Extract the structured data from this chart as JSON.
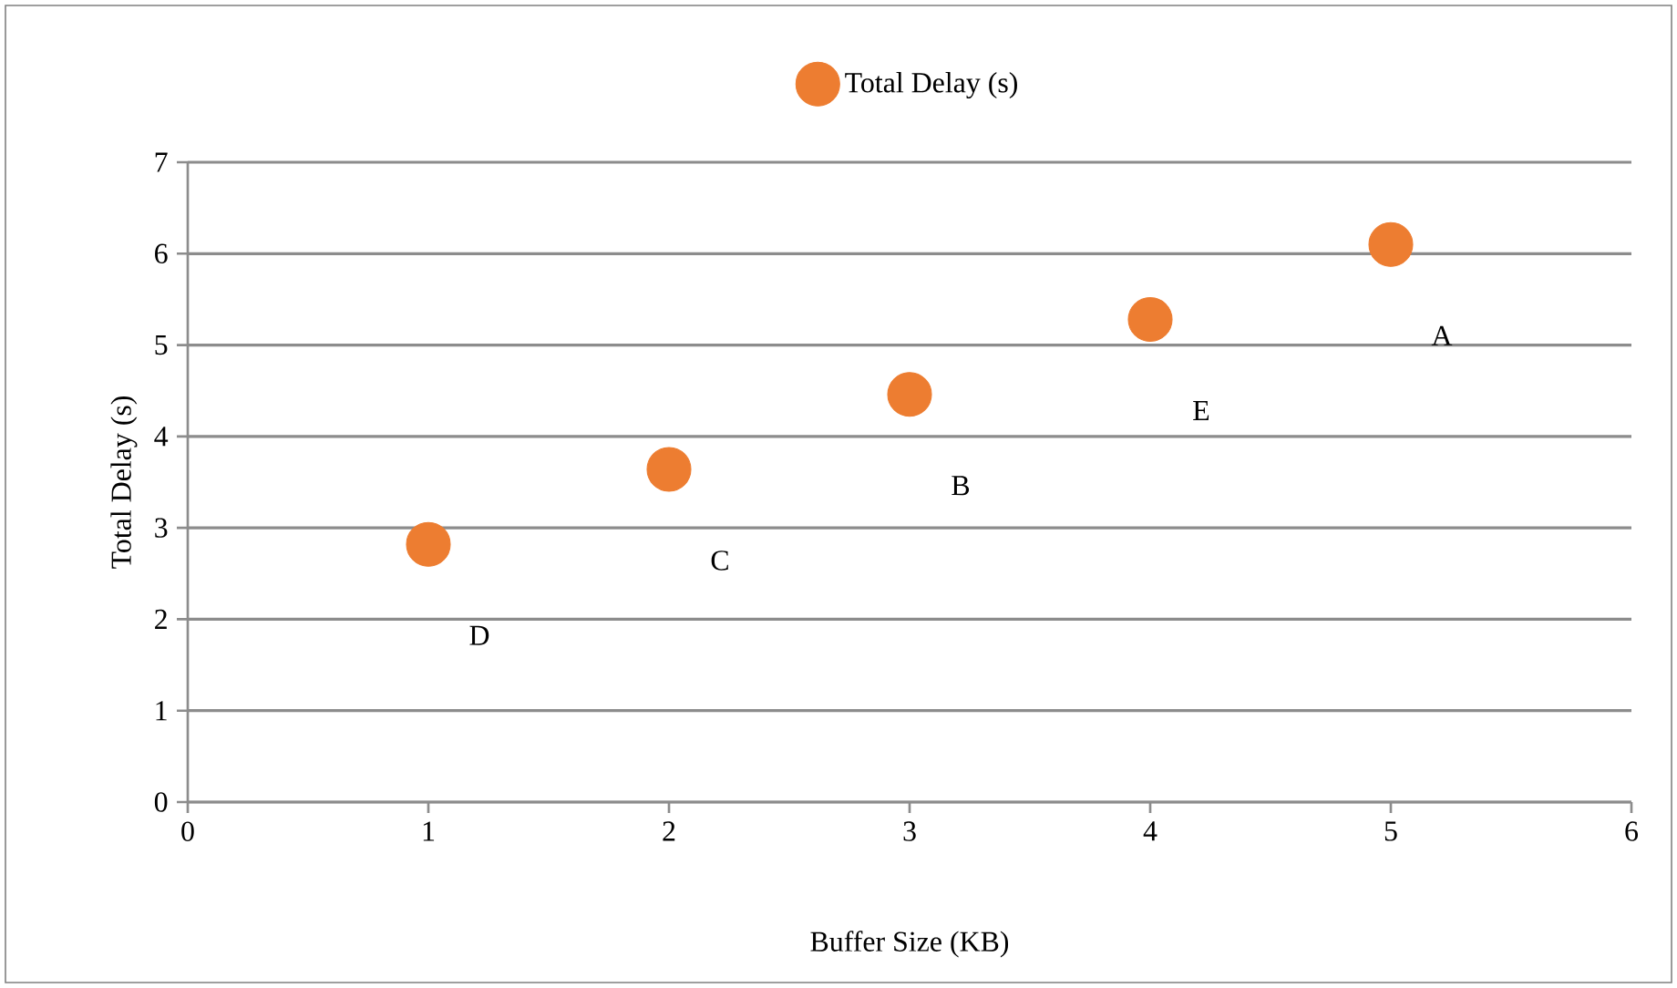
{
  "chart_data": {
    "type": "scatter",
    "xlabel": "Buffer Size (KB)",
    "ylabel": "Total Delay (s)",
    "x": [
      1,
      2,
      3,
      4,
      5
    ],
    "series": [
      {
        "name": "Total Delay (s)",
        "color": "#ed7d31",
        "values": [
          2.82,
          3.64,
          4.46,
          5.28,
          6.1
        ],
        "value_labels": [
          "D",
          "C",
          "B",
          "E",
          "A"
        ]
      }
    ],
    "xlim": [
      0,
      6
    ],
    "ylim": [
      0,
      7
    ],
    "xticks": [
      0,
      1,
      2,
      3,
      4,
      5,
      6
    ],
    "yticks": [
      0,
      1,
      2,
      3,
      4,
      5,
      6,
      7
    ],
    "grid": "y",
    "legend": "top",
    "marker": "circle"
  }
}
